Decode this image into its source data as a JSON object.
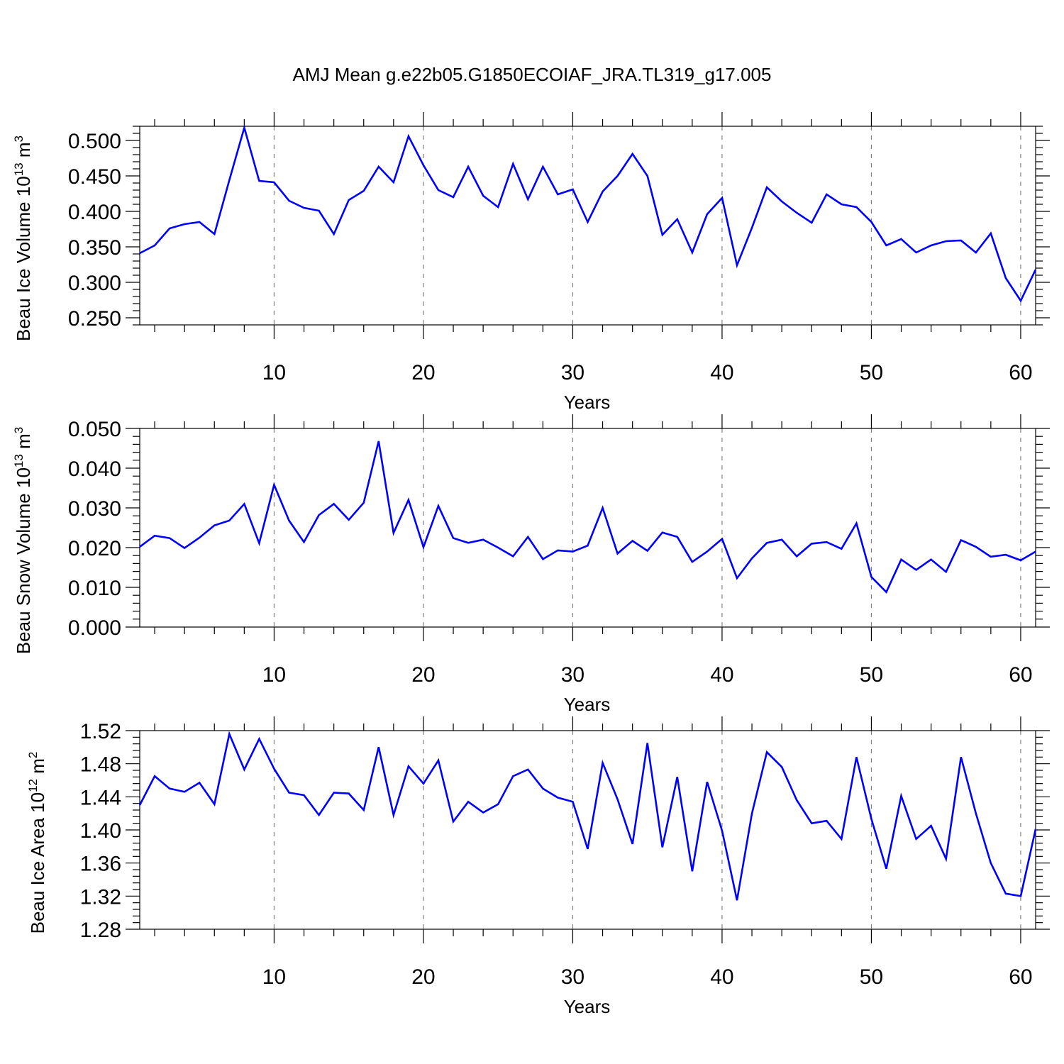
{
  "figure": {
    "title": "AMJ Mean g.e22b05.G1850ECOIAF_JRA.TL319_g17.005"
  },
  "colors": {
    "series": "#0000ff",
    "grid": "#808080",
    "frame": "#000000"
  },
  "chart_data": [
    {
      "type": "line",
      "name": "ice-volume",
      "ylabel": {
        "prefix": "Beau Ice Volume 10",
        "sup1": "13",
        "mid": " m",
        "sup2": "3"
      },
      "xlabel": "Years",
      "xlim": [
        1,
        61
      ],
      "ylim": [
        0.24,
        0.52
      ],
      "yticks": [
        0.25,
        0.3,
        0.35,
        0.4,
        0.45,
        0.5
      ],
      "ytick_labels": [
        "0.250",
        "0.300",
        "0.350",
        "0.400",
        "0.450",
        "0.500"
      ],
      "yminor_step": 0.01,
      "xticks": [
        10,
        20,
        30,
        40,
        50,
        60
      ],
      "xtick_labels": [
        "10",
        "20",
        "30",
        "40",
        "50",
        "60"
      ],
      "grid": "x-dashed",
      "x": [
        1,
        2,
        3,
        4,
        5,
        6,
        7,
        8,
        9,
        10,
        11,
        12,
        13,
        14,
        15,
        16,
        17,
        18,
        19,
        20,
        21,
        22,
        23,
        24,
        25,
        26,
        27,
        28,
        29,
        30,
        31,
        32,
        33,
        34,
        35,
        36,
        37,
        38,
        39,
        40,
        41,
        42,
        43,
        44,
        45,
        46,
        47,
        48,
        49,
        50,
        51,
        52,
        53,
        54,
        55,
        56,
        57,
        58,
        59,
        60,
        61
      ],
      "values": [
        0.341,
        0.352,
        0.376,
        0.382,
        0.385,
        0.368,
        0.444,
        0.518,
        0.443,
        0.441,
        0.415,
        0.405,
        0.401,
        0.368,
        0.416,
        0.429,
        0.463,
        0.441,
        0.506,
        0.465,
        0.43,
        0.42,
        0.463,
        0.422,
        0.406,
        0.467,
        0.417,
        0.463,
        0.424,
        0.431,
        0.385,
        0.428,
        0.45,
        0.481,
        0.45,
        0.367,
        0.389,
        0.342,
        0.396,
        0.419,
        0.324,
        0.377,
        0.434,
        0.414,
        0.398,
        0.384,
        0.424,
        0.41,
        0.406,
        0.385,
        0.352,
        0.361,
        0.342,
        0.352,
        0.358,
        0.359,
        0.342,
        0.369,
        0.306,
        0.274,
        0.318
      ]
    },
    {
      "type": "line",
      "name": "snow-volume",
      "ylabel": {
        "prefix": "Beau Snow Volume 10",
        "sup1": "13",
        "mid": " m",
        "sup2": "3"
      },
      "xlabel": "Years",
      "xlim": [
        1,
        61
      ],
      "ylim": [
        0.0,
        0.05
      ],
      "yticks": [
        0.0,
        0.01,
        0.02,
        0.03,
        0.04,
        0.05
      ],
      "ytick_labels": [
        "0.000",
        "0.010",
        "0.020",
        "0.030",
        "0.040",
        "0.050"
      ],
      "yminor_step": 0.002,
      "xticks": [
        10,
        20,
        30,
        40,
        50,
        60
      ],
      "xtick_labels": [
        "10",
        "20",
        "30",
        "40",
        "50",
        "60"
      ],
      "grid": "x-dashed",
      "x": [
        1,
        2,
        3,
        4,
        5,
        6,
        7,
        8,
        9,
        10,
        11,
        12,
        13,
        14,
        15,
        16,
        17,
        18,
        19,
        20,
        21,
        22,
        23,
        24,
        25,
        26,
        27,
        28,
        29,
        30,
        31,
        32,
        33,
        34,
        35,
        36,
        37,
        38,
        39,
        40,
        41,
        42,
        43,
        44,
        45,
        46,
        47,
        48,
        49,
        50,
        51,
        52,
        53,
        54,
        55,
        56,
        57,
        58,
        59,
        60,
        61
      ],
      "values": [
        0.0202,
        0.023,
        0.0224,
        0.0199,
        0.0225,
        0.0256,
        0.0268,
        0.031,
        0.0211,
        0.0358,
        0.0268,
        0.0214,
        0.0282,
        0.031,
        0.027,
        0.0313,
        0.0468,
        0.0237,
        0.032,
        0.0201,
        0.0305,
        0.0224,
        0.0212,
        0.022,
        0.02,
        0.0178,
        0.0227,
        0.0171,
        0.0193,
        0.019,
        0.0205,
        0.03,
        0.0185,
        0.0217,
        0.0192,
        0.0238,
        0.0227,
        0.0164,
        0.019,
        0.0222,
        0.0123,
        0.0173,
        0.0212,
        0.022,
        0.0178,
        0.021,
        0.0214,
        0.0197,
        0.0261,
        0.0126,
        0.0088,
        0.017,
        0.0144,
        0.017,
        0.0139,
        0.0219,
        0.0202,
        0.0177,
        0.0182,
        0.0168,
        0.019
      ]
    },
    {
      "type": "line",
      "name": "ice-area",
      "ylabel": {
        "prefix": "Beau Ice Area 10",
        "sup1": "12",
        "mid": " m",
        "sup2": "2"
      },
      "xlabel": "Years",
      "xlim": [
        1,
        61
      ],
      "ylim": [
        1.28,
        1.52
      ],
      "yticks": [
        1.28,
        1.32,
        1.36,
        1.4,
        1.44,
        1.48,
        1.52
      ],
      "ytick_labels": [
        "1.28",
        "1.32",
        "1.36",
        "1.40",
        "1.44",
        "1.48",
        "1.52"
      ],
      "yminor_step": 0.008,
      "xticks": [
        10,
        20,
        30,
        40,
        50,
        60
      ],
      "xtick_labels": [
        "10",
        "20",
        "30",
        "40",
        "50",
        "60"
      ],
      "grid": "x-dashed",
      "x": [
        1,
        2,
        3,
        4,
        5,
        6,
        7,
        8,
        9,
        10,
        11,
        12,
        13,
        14,
        15,
        16,
        17,
        18,
        19,
        20,
        21,
        22,
        23,
        24,
        25,
        26,
        27,
        28,
        29,
        30,
        31,
        32,
        33,
        34,
        35,
        36,
        37,
        38,
        39,
        40,
        41,
        42,
        43,
        44,
        45,
        46,
        47,
        48,
        49,
        50,
        51,
        52,
        53,
        54,
        55,
        56,
        57,
        58,
        59,
        60,
        61
      ],
      "values": [
        1.43,
        1.465,
        1.45,
        1.446,
        1.457,
        1.431,
        1.516,
        1.473,
        1.51,
        1.474,
        1.445,
        1.442,
        1.418,
        1.445,
        1.444,
        1.424,
        1.5,
        1.418,
        1.477,
        1.456,
        1.484,
        1.41,
        1.434,
        1.421,
        1.431,
        1.465,
        1.473,
        1.45,
        1.439,
        1.434,
        1.377,
        1.481,
        1.437,
        1.383,
        1.505,
        1.379,
        1.464,
        1.35,
        1.458,
        1.399,
        1.315,
        1.42,
        1.494,
        1.476,
        1.436,
        1.408,
        1.411,
        1.389,
        1.488,
        1.413,
        1.353,
        1.441,
        1.389,
        1.405,
        1.365,
        1.488,
        1.42,
        1.36,
        1.323,
        1.32,
        1.401
      ]
    }
  ]
}
